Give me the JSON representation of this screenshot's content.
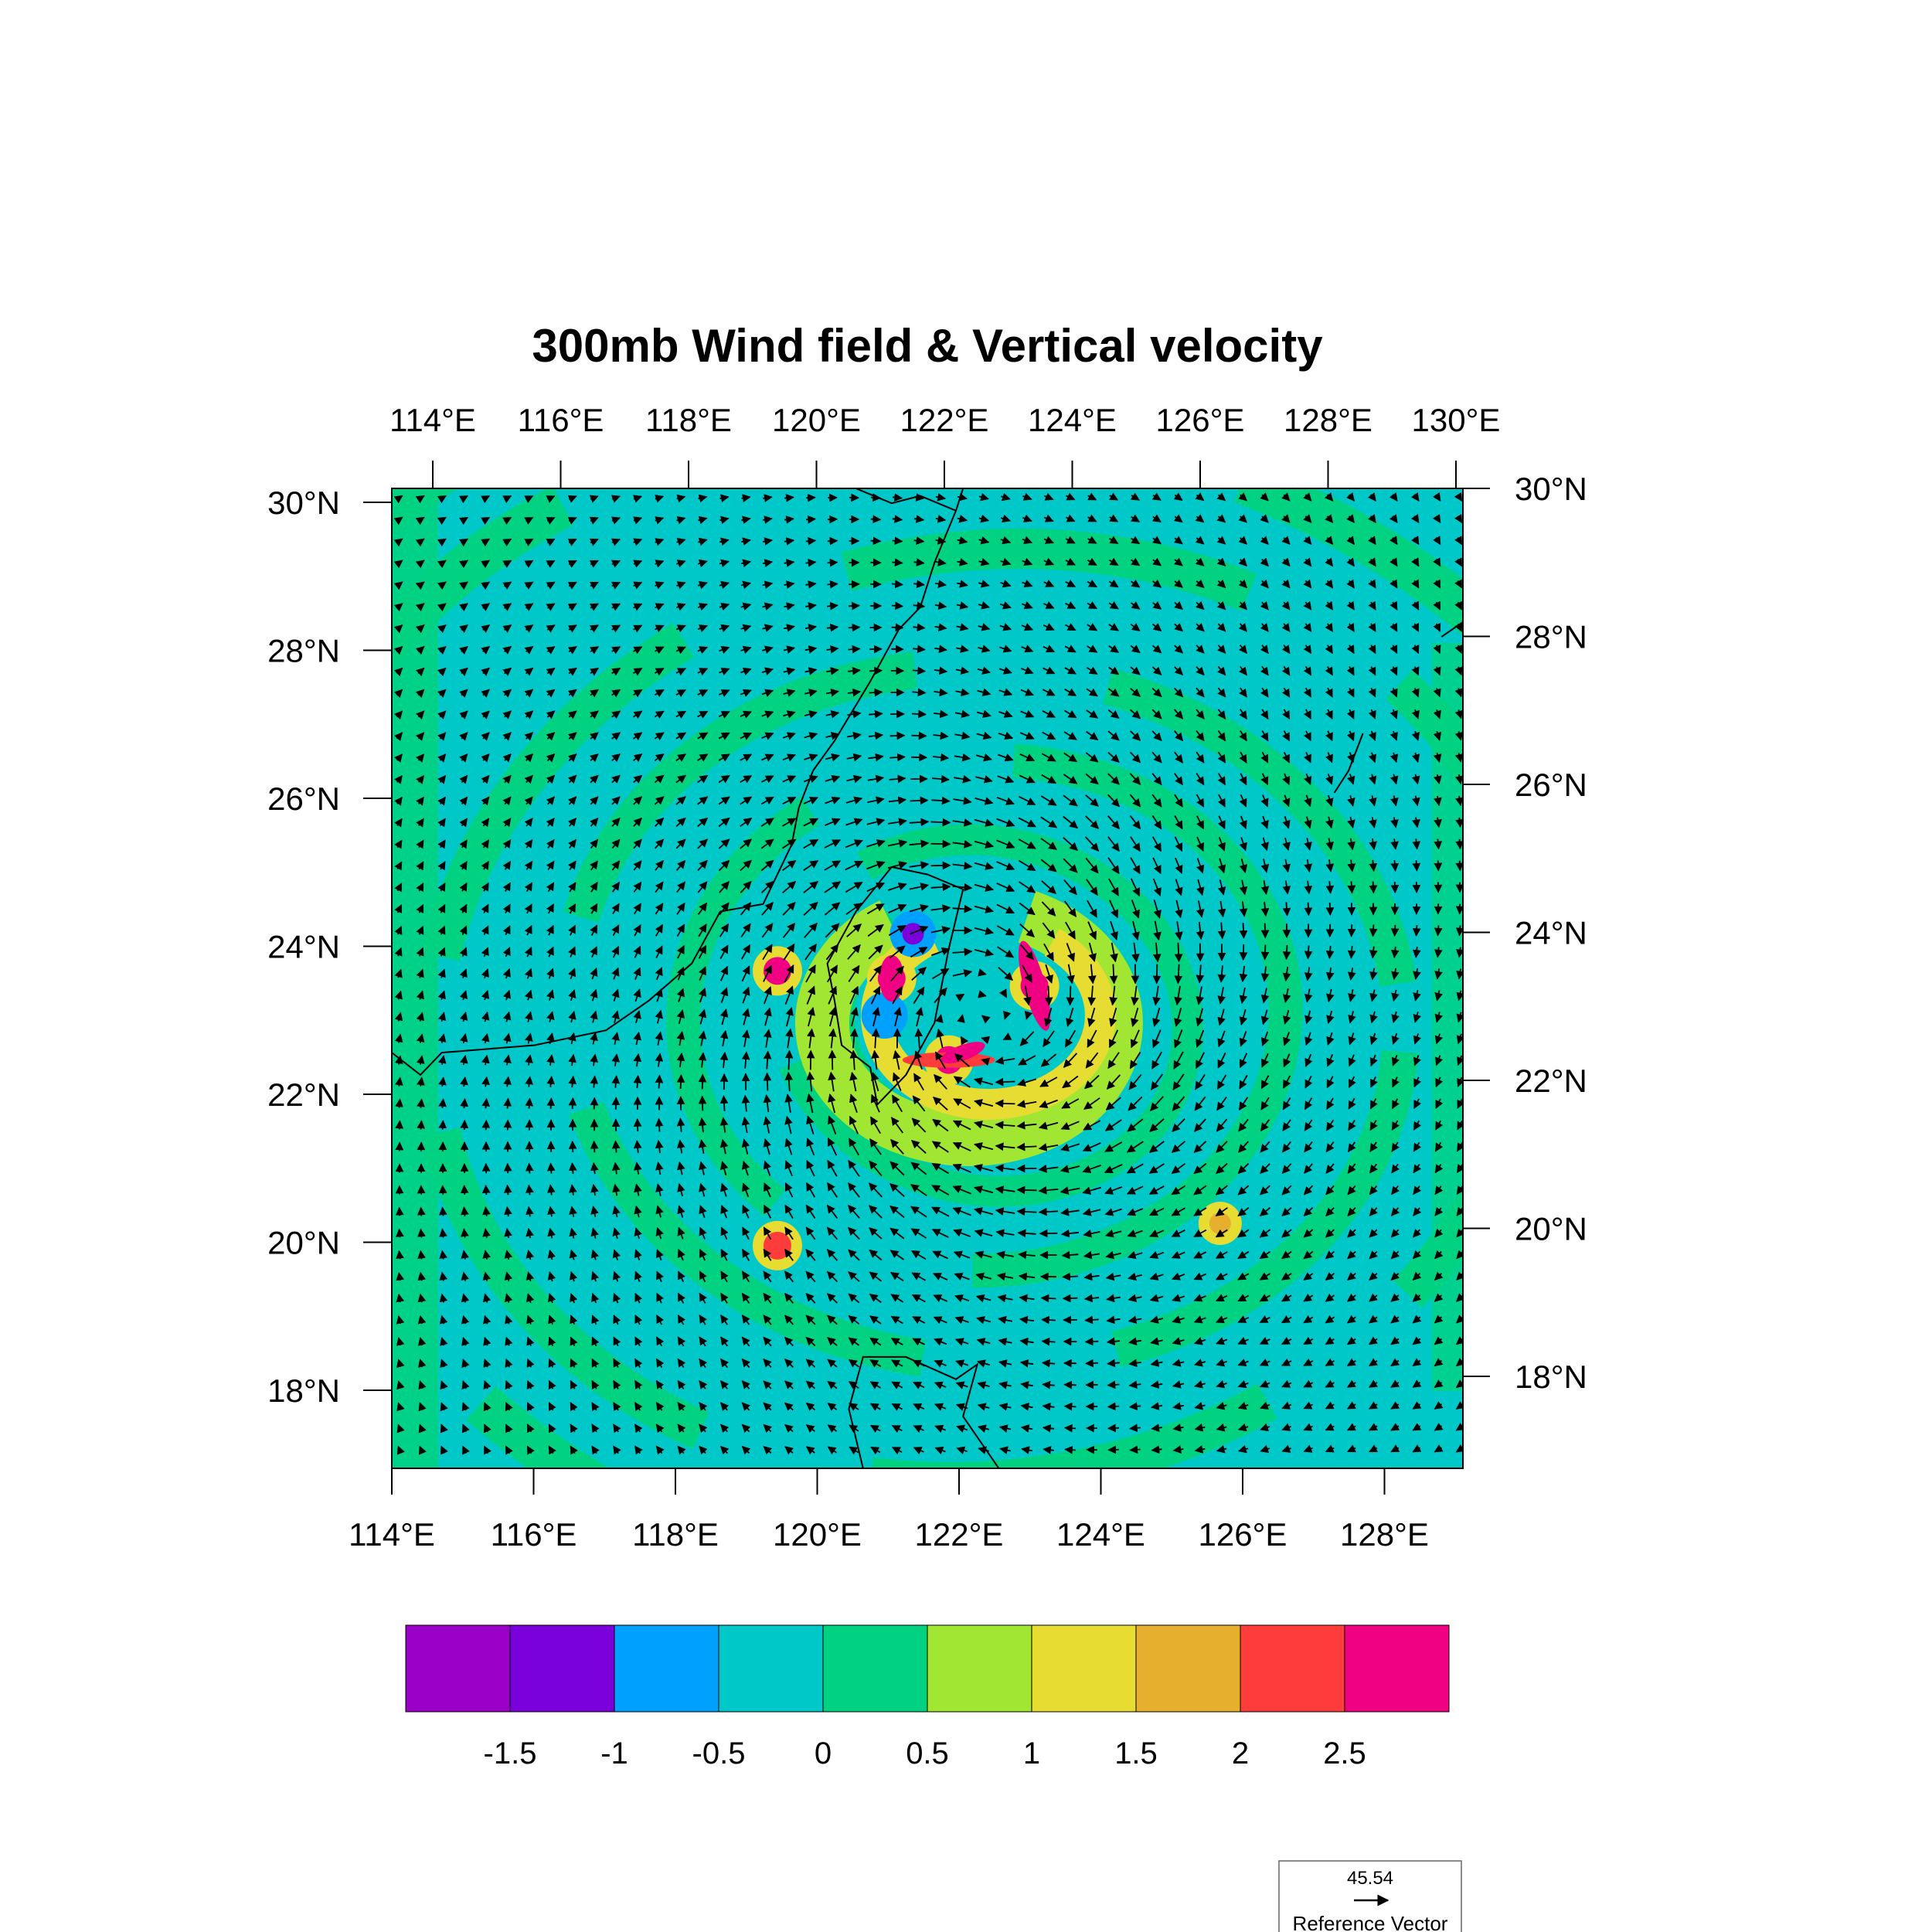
{
  "title": "300mb Wind field & Vertical velocity",
  "map": {
    "bottom_lon_labels": [
      "114°E",
      "116°E",
      "118°E",
      "120°E",
      "122°E",
      "124°E",
      "126°E",
      "128°E"
    ],
    "top_lon_labels": [
      "114°E",
      "116°E",
      "118°E",
      "120°E",
      "122°E",
      "124°E",
      "126°E",
      "128°E",
      "130°E"
    ],
    "left_lat_labels": [
      "30°N",
      "28°N",
      "26°N",
      "24°N",
      "22°N",
      "20°N",
      "18°N"
    ],
    "right_lat_labels": [
      "30°N",
      "28°N",
      "26°N",
      "24°N",
      "22°N",
      "20°N",
      "18°N"
    ],
    "lon_range": [
      114,
      129
    ],
    "lat_range": [
      17,
      30.2
    ],
    "cyclone_center": {
      "lon": 122.3,
      "lat": 23.1
    }
  },
  "colorbar": {
    "colors": [
      "#9b00c8",
      "#7a00dc",
      "#00a0ff",
      "#00c8c8",
      "#00d282",
      "#a0e632",
      "#e6dc32",
      "#e6af2d",
      "#ff3c3c",
      "#f00082"
    ],
    "labels": [
      "-1.5",
      "-1",
      "-0.5",
      "0",
      "0.5",
      "1",
      "1.5",
      "2",
      "2.5"
    ]
  },
  "reference_vector": {
    "value": "45.54",
    "label": "Reference Vector"
  },
  "chart_data": {
    "type": "heatmap",
    "title": "300mb Wind field & Vertical velocity",
    "xlabel": "",
    "ylabel": "",
    "x_ticks": [
      "114°E",
      "116°E",
      "118°E",
      "120°E",
      "122°E",
      "124°E",
      "126°E",
      "128°E"
    ],
    "y_ticks": [
      "18°N",
      "20°N",
      "22°N",
      "24°N",
      "26°N",
      "28°N",
      "30°N"
    ],
    "levels": [
      -1.5,
      -1,
      -0.5,
      0,
      0.5,
      1,
      1.5,
      2,
      2.5
    ],
    "background_range": [
      0,
      0.5
    ],
    "features": [
      {
        "lon": 123.0,
        "lat": 23.5,
        "value": 2.7
      },
      {
        "lon": 121.8,
        "lat": 22.5,
        "value": 2.6
      },
      {
        "lon": 121.0,
        "lat": 23.6,
        "value": 2.5
      },
      {
        "lon": 119.4,
        "lat": 23.7,
        "value": 2.5
      },
      {
        "lon": 119.4,
        "lat": 20.0,
        "value": 2.2
      },
      {
        "lon": 125.6,
        "lat": 20.3,
        "value": 1.5
      },
      {
        "lon": 121.3,
        "lat": 24.2,
        "value": -1.2
      },
      {
        "lon": 120.9,
        "lat": 23.1,
        "value": -0.8
      }
    ],
    "reference_vector": 45.54
  }
}
